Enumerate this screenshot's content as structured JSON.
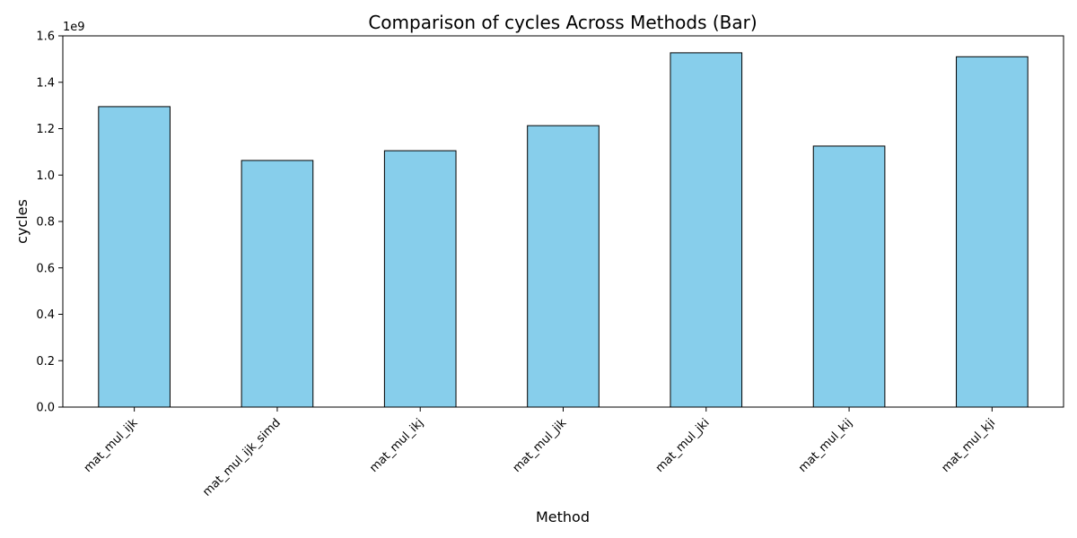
{
  "chart_data": {
    "type": "bar",
    "title": "Comparison of cycles Across Methods (Bar)",
    "xlabel": "Method",
    "ylabel": "cycles",
    "y_scale_label": "1e9",
    "y_scale_factor": 1000000000,
    "categories": [
      "mat_mul_ijk",
      "mat_mul_ijk_simd",
      "mat_mul_ikj",
      "mat_mul_jik",
      "mat_mul_jki",
      "mat_mul_kij",
      "mat_mul_kji"
    ],
    "values": [
      1295000000,
      1063000000,
      1105000000,
      1213000000,
      1527000000,
      1125000000,
      1510000000
    ],
    "ylim": [
      0,
      1600000000
    ],
    "yticks": [
      0,
      200000000,
      400000000,
      600000000,
      800000000,
      1000000000,
      1200000000,
      1400000000,
      1600000000
    ],
    "ytick_labels": [
      "0.0",
      "0.2",
      "0.4",
      "0.6",
      "0.8",
      "1.0",
      "1.2",
      "1.4",
      "1.6"
    ],
    "bar_color": "#87ceeb",
    "bar_edge_color": "#000000",
    "grid": false,
    "legend": "none"
  }
}
